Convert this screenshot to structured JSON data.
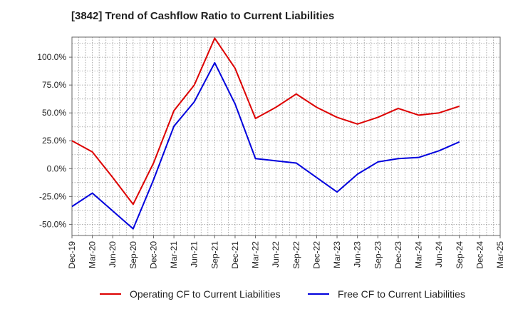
{
  "colors": {
    "operating": "#dd0000",
    "free": "#0000dd",
    "grid": "#999999",
    "frame": "#666666"
  },
  "chart_data": {
    "type": "line",
    "title": "[3842]  Trend of Cashflow Ratio to Current Liabilities",
    "xlabel": "",
    "ylabel": "",
    "categories": [
      "Dec-19",
      "Mar-20",
      "Jun-20",
      "Sep-20",
      "Dec-20",
      "Mar-21",
      "Jun-21",
      "Sep-21",
      "Dec-21",
      "Mar-22",
      "Jun-22",
      "Sep-22",
      "Dec-22",
      "Mar-23",
      "Jun-23",
      "Sep-23",
      "Dec-23",
      "Mar-24",
      "Jun-24",
      "Sep-24",
      "Dec-24",
      "Mar-25"
    ],
    "y_ticks": [
      "100.0%",
      "75.0%",
      "50.0%",
      "25.0%",
      "0.0%",
      "-25.0%",
      "-50.0%"
    ],
    "y_tick_values": [
      100,
      75,
      50,
      25,
      0,
      -25,
      -50
    ],
    "ylim": [
      -60,
      118
    ],
    "grid": true,
    "legend_position": "bottom",
    "series": [
      {
        "name": "Operating CF to Current Liabilities",
        "color": "#dd0000",
        "values": [
          25,
          15,
          -8,
          -32,
          5,
          52,
          75,
          117,
          90,
          45,
          55,
          67,
          55,
          46,
          40,
          46,
          54,
          48,
          50,
          56,
          null,
          null
        ]
      },
      {
        "name": "Free CF to Current Liabilities",
        "color": "#0000dd",
        "values": [
          -34,
          -22,
          -38,
          -54,
          -10,
          38,
          60,
          95,
          58,
          9,
          7,
          5,
          -8,
          -21,
          -5,
          6,
          9,
          10,
          16,
          24,
          null,
          null
        ]
      }
    ]
  }
}
